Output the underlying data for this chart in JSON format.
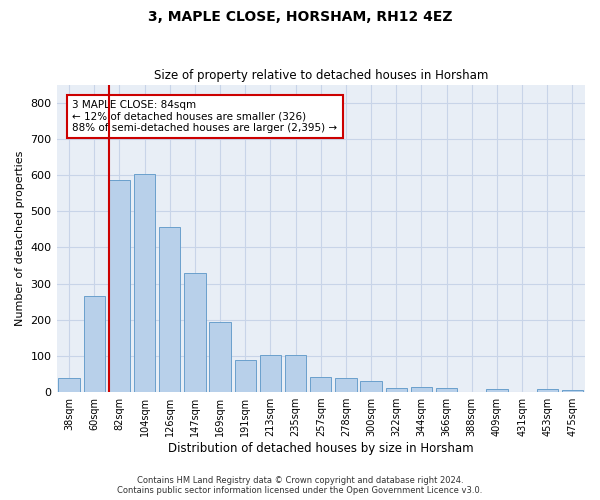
{
  "title": "3, MAPLE CLOSE, HORSHAM, RH12 4EZ",
  "subtitle": "Size of property relative to detached houses in Horsham",
  "xlabel": "Distribution of detached houses by size in Horsham",
  "ylabel": "Number of detached properties",
  "categories": [
    "38sqm",
    "60sqm",
    "82sqm",
    "104sqm",
    "126sqm",
    "147sqm",
    "169sqm",
    "191sqm",
    "213sqm",
    "235sqm",
    "257sqm",
    "278sqm",
    "300sqm",
    "322sqm",
    "344sqm",
    "366sqm",
    "388sqm",
    "409sqm",
    "431sqm",
    "453sqm",
    "475sqm"
  ],
  "values": [
    38,
    265,
    585,
    603,
    455,
    328,
    195,
    88,
    102,
    102,
    42,
    38,
    32,
    12,
    15,
    10,
    0,
    8,
    0,
    8,
    7
  ],
  "bar_color": "#b8d0ea",
  "bar_edge_color": "#6aa0cc",
  "line_x_index": 2,
  "line_color": "#cc0000",
  "annotation_text": "3 MAPLE CLOSE: 84sqm\n← 12% of detached houses are smaller (326)\n88% of semi-detached houses are larger (2,395) →",
  "annotation_box_color": "#ffffff",
  "annotation_box_edge_color": "#cc0000",
  "ylim": [
    0,
    850
  ],
  "yticks": [
    0,
    100,
    200,
    300,
    400,
    500,
    600,
    700,
    800
  ],
  "grid_color": "#c8d4e8",
  "background_color": "#e8eef6",
  "footer_line1": "Contains HM Land Registry data © Crown copyright and database right 2024.",
  "footer_line2": "Contains public sector information licensed under the Open Government Licence v3.0."
}
